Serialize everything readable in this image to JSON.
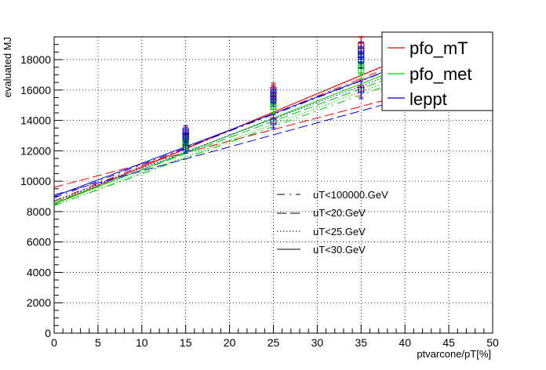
{
  "chart_data": {
    "type": "line",
    "xlabel": "ptvarcone/pT[%]",
    "ylabel": "evaluated MJ",
    "xlim": [
      0,
      50
    ],
    "ylim": [
      0,
      19500
    ],
    "x_ticks": [
      0,
      5,
      10,
      15,
      20,
      25,
      30,
      35,
      40,
      45,
      50
    ],
    "y_ticks": [
      0,
      2000,
      4000,
      6000,
      8000,
      10000,
      12000,
      14000,
      16000,
      18000
    ],
    "grid": true,
    "x_points": [
      15,
      25,
      35
    ],
    "legend_color": {
      "placement": "top-right",
      "entries": [
        {
          "label": "pfo_mT",
          "color": "#e00000"
        },
        {
          "label": "pfo_met",
          "color": "#00cc00"
        },
        {
          "label": "leppt",
          "color": "#0000cc"
        }
      ]
    },
    "legend_style": {
      "placement": "center-right",
      "entries": [
        {
          "label": "uT<100000.GeV",
          "dash": "dash-dot"
        },
        {
          "label": "uT<20.GeV",
          "dash": "dashed"
        },
        {
          "label": "uT<25.GeV",
          "dash": "dotted"
        },
        {
          "label": "uT<30.GeV",
          "dash": "solid"
        }
      ]
    },
    "series": [
      {
        "variable": "pfo_mT",
        "cut": "uT<100000.GeV",
        "color": "#e00000",
        "dash": "dash-dot",
        "values": [
          12700,
          15700,
          18600
        ],
        "fit": [
          8700,
          20200
        ]
      },
      {
        "variable": "pfo_mT",
        "cut": "uT<20.GeV",
        "color": "#e00000",
        "dash": "dashed",
        "values": [
          12500,
          14000,
          16100
        ],
        "fit": [
          9600,
          17200
        ]
      },
      {
        "variable": "pfo_mT",
        "cut": "uT<25.GeV",
        "color": "#e00000",
        "dash": "dotted",
        "values": [
          13000,
          15900,
          18900
        ],
        "fit": [
          8600,
          20500
        ]
      },
      {
        "variable": "pfo_mT",
        "cut": "uT<30.GeV",
        "color": "#e00000",
        "dash": "solid",
        "values": [
          13200,
          16000,
          18950
        ],
        "fit": [
          8500,
          20600
        ]
      },
      {
        "variable": "pfo_met",
        "cut": "uT<100000.GeV",
        "color": "#00cc00",
        "dash": "dash-dot",
        "values": [
          12300,
          14900,
          17300
        ],
        "fit": [
          8400,
          18800
        ]
      },
      {
        "variable": "pfo_met",
        "cut": "uT<20.GeV",
        "color": "#00cc00",
        "dash": "dashed",
        "values": [
          12600,
          15200,
          17700
        ],
        "fit": [
          8600,
          19300
        ]
      },
      {
        "variable": "pfo_met",
        "cut": "uT<25.GeV",
        "color": "#00cc00",
        "dash": "dotted",
        "values": [
          12500,
          15000,
          17600
        ],
        "fit": [
          8400,
          19100
        ]
      },
      {
        "variable": "pfo_met",
        "cut": "uT<30.GeV",
        "color": "#00cc00",
        "dash": "solid",
        "values": [
          12800,
          15500,
          18200
        ],
        "fit": [
          8500,
          19800
        ]
      },
      {
        "variable": "leppt",
        "cut": "uT<100000.GeV",
        "color": "#0000cc",
        "dash": "dash-dot",
        "values": [
          13000,
          15600,
          18300
        ],
        "fit": [
          8900,
          19900
        ]
      },
      {
        "variable": "leppt",
        "cut": "uT<20.GeV",
        "color": "#0000cc",
        "dash": "dashed",
        "values": [
          12200,
          13900,
          16000
        ],
        "fit": [
          9100,
          17000
        ]
      },
      {
        "variable": "leppt",
        "cut": "uT<25.GeV",
        "color": "#0000cc",
        "dash": "dotted",
        "values": [
          12900,
          15400,
          18000
        ],
        "fit": [
          8700,
          19500
        ]
      },
      {
        "variable": "leppt",
        "cut": "uT<30.GeV",
        "color": "#0000cc",
        "dash": "solid",
        "values": [
          13300,
          15800,
          18600
        ],
        "fit": [
          9000,
          19900
        ]
      }
    ]
  }
}
